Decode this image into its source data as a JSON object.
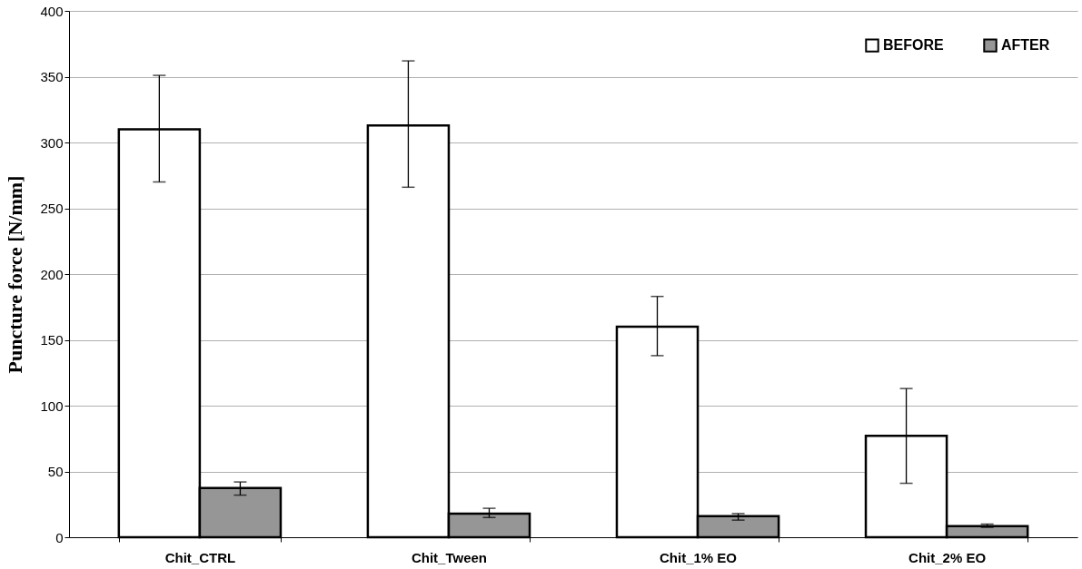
{
  "chart_data": {
    "type": "bar",
    "ylabel": "Puncture force [N/mm]",
    "categories": [
      "Chit_CTRL",
      "Chit_Tween",
      "Chit_1% EO",
      "Chit_2% EO"
    ],
    "series": [
      {
        "name": "BEFORE",
        "color": "#ffffff",
        "values": [
          310,
          313,
          160,
          77
        ],
        "errors": [
          [
            270,
            351
          ],
          [
            266,
            362
          ],
          [
            138,
            183
          ],
          [
            41,
            113
          ]
        ]
      },
      {
        "name": "AFTER",
        "color": "#969696",
        "values": [
          37.5,
          18,
          16,
          8.5
        ],
        "errors": [
          [
            32,
            42
          ],
          [
            15,
            22
          ],
          [
            13,
            18
          ],
          [
            7.5,
            10
          ]
        ]
      }
    ],
    "ylim": [
      0,
      400
    ],
    "yticks": [
      0,
      50,
      100,
      150,
      200,
      250,
      300,
      350,
      400
    ],
    "grid": "y",
    "legend": "top right"
  }
}
